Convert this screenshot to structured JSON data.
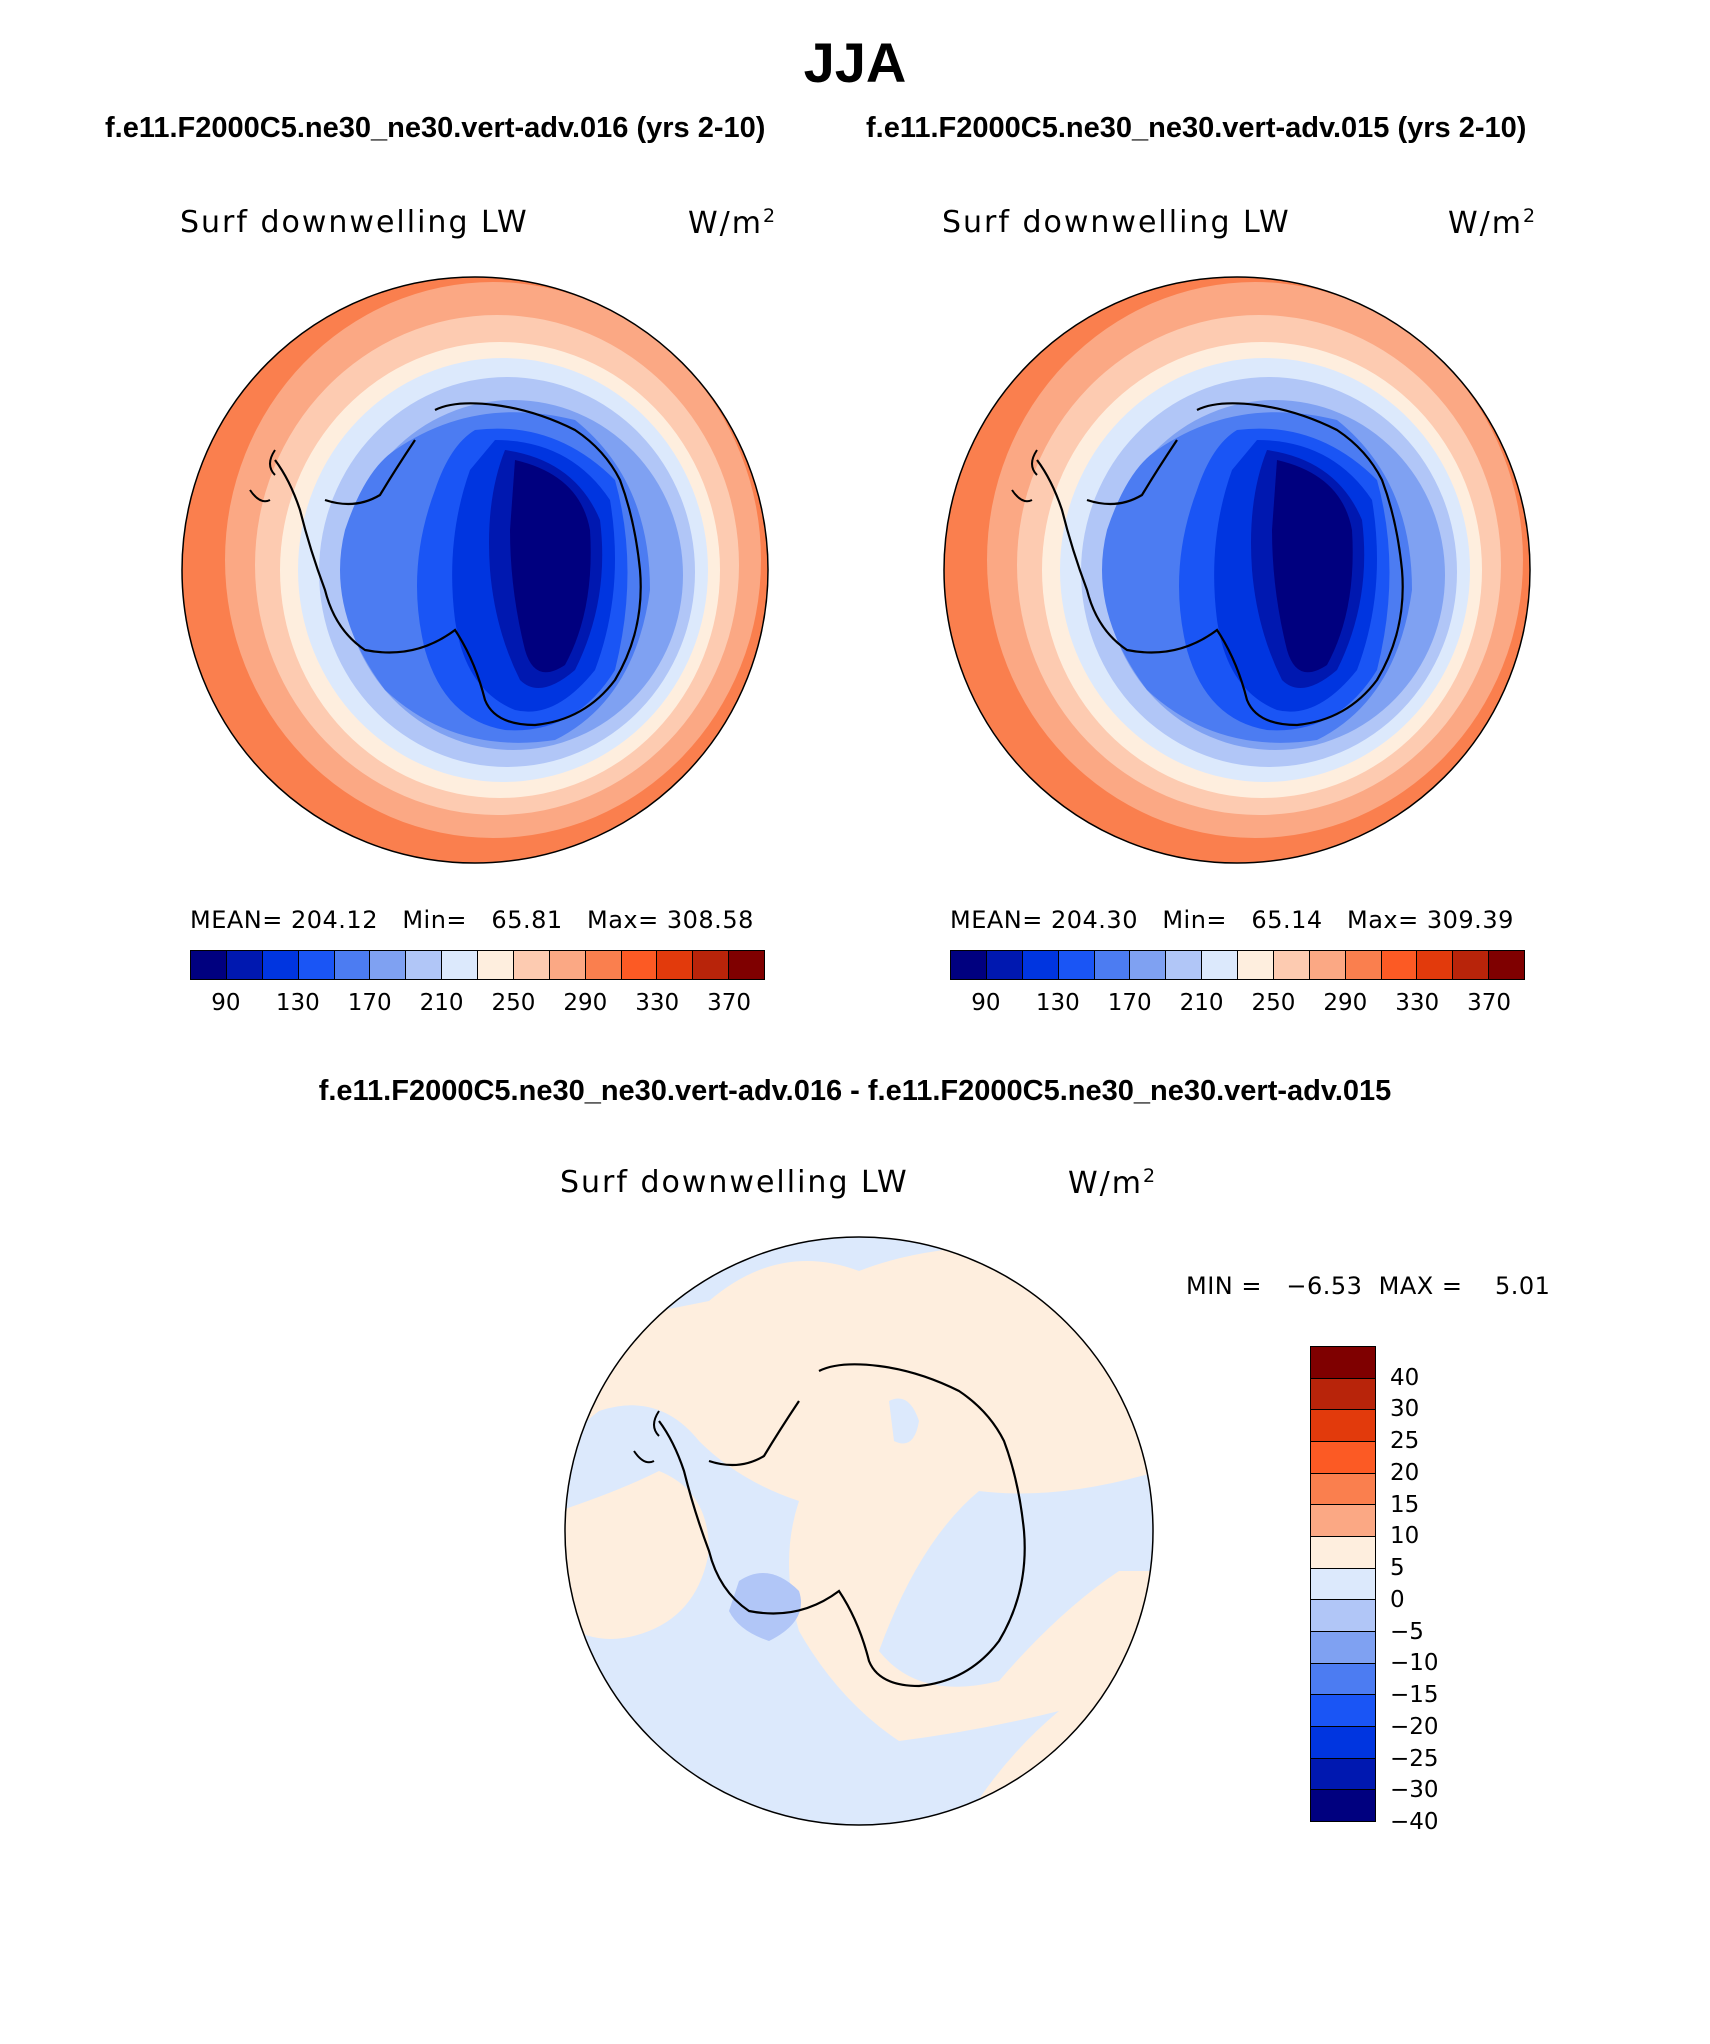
{
  "title": "JJA",
  "subtitles": {
    "left": "f.e11.F2000C5.ne30_ne30.vert-adv.016 (yrs 2-10)",
    "right": "f.e11.F2000C5.ne30_ne30.vert-adv.015 (yrs 2-10)",
    "diff": "f.e11.F2000C5.ne30_ne30.vert-adv.016 - f.e11.F2000C5.ne30_ne30.vert-adv.015"
  },
  "panels": [
    {
      "id": "left",
      "variable": "Surf downwelling LW",
      "units_base": "W/m",
      "units_exp": "2",
      "stats": "MEAN= 204.12   Min=   65.81   Max= 308.58",
      "mean": 204.12,
      "min": 65.81,
      "max": 308.58
    },
    {
      "id": "right",
      "variable": "Surf downwelling LW",
      "units_base": "W/m",
      "units_exp": "2",
      "stats": "MEAN= 204.30   Min=   65.14   Max= 309.39",
      "mean": 204.3,
      "min": 65.14,
      "max": 309.39
    },
    {
      "id": "diff",
      "variable": "Surf downwelling LW",
      "units_base": "W/m",
      "units_exp": "2",
      "stats": "MIN =   −6.53  MAX =    5.01",
      "min": -6.53,
      "max": 5.01
    }
  ],
  "colorbar_abs": {
    "colors": [
      "#00007f",
      "#0018b0",
      "#0035e0",
      "#1a55f5",
      "#4c7cf2",
      "#7fa1f2",
      "#b1c6f7",
      "#dce9fc",
      "#feeede",
      "#fdcbb1",
      "#fba884",
      "#fa7f4e",
      "#fc5a24",
      "#e23a0c",
      "#b8240a",
      "#7f0000"
    ],
    "labels": [
      "90",
      "130",
      "170",
      "210",
      "250",
      "290",
      "330",
      "370"
    ]
  },
  "colorbar_diff": {
    "colors": [
      "#7f0000",
      "#b8240a",
      "#e23a0c",
      "#fc5a24",
      "#fa7f4e",
      "#fba884",
      "#feeede",
      "#dce9fc",
      "#b1c6f7",
      "#7fa1f2",
      "#4c7cf2",
      "#1a55f5",
      "#0035e0",
      "#0018b0",
      "#00007f"
    ],
    "labels": [
      "40",
      "30",
      "25",
      "20",
      "15",
      "10",
      "5",
      "0",
      "−5",
      "−10",
      "−15",
      "−20",
      "−25",
      "−30",
      "−40"
    ]
  }
}
